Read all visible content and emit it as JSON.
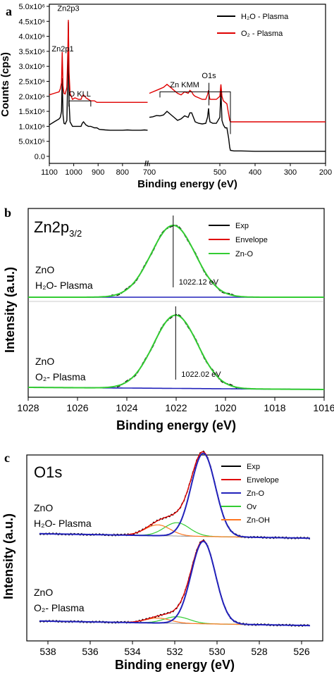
{
  "chart_data": [
    {
      "panel": "a",
      "type": "line",
      "xlabel": "Binding energy (eV)",
      "ylabel": "Counts (cps)",
      "x_ticks": [
        "1100",
        "1000",
        "900",
        "800",
        "700",
        "500",
        "400",
        "300",
        "200"
      ],
      "x_break_label": "//",
      "y_ticks": [
        "0.0",
        "5.0x10⁵",
        "1.0x10⁶",
        "1.5x10⁶",
        "2.0x10⁶",
        "2.5x10⁶",
        "3.0x10⁶",
        "3.5x10⁶",
        "4.0x10⁶",
        "4.5x10⁶",
        "5.0x10⁶"
      ],
      "ylim": [
        0,
        5000000
      ],
      "annotations": [
        {
          "text": "Zn2p3",
          "x": 1022,
          "y": 4850000
        },
        {
          "text": "Zn2p1",
          "x": 1045,
          "y": 3500000
        },
        {
          "text": "O KLL",
          "x": 975,
          "y": 2000000
        },
        {
          "text": "Zn KMM",
          "x": 600,
          "y": 2300000
        },
        {
          "text": "O1s",
          "x": 531,
          "y": 2600000
        }
      ],
      "legend": {
        "placement": "top-right",
        "entries": [
          "H₂O - Plasma",
          "O₂ - Plasma"
        ]
      },
      "series": [
        {
          "name": "H₂O - Plasma",
          "color": "#000000",
          "x": [
            1100,
            1080,
            1060,
            1055,
            1050,
            1047,
            1044,
            1040,
            1035,
            1028,
            1024,
            1022,
            1019,
            1015,
            1005,
            995,
            980,
            970,
            965,
            960,
            950,
            940,
            930,
            915,
            905,
            895,
            870,
            850,
            820,
            800,
            780,
            760,
            740,
            725,
            710,
            705,
            700,
            690,
            680,
            670,
            660,
            650,
            640,
            630,
            620,
            610,
            600,
            590,
            585,
            580,
            575,
            570,
            560,
            550,
            540,
            535,
            532,
            530,
            528,
            520,
            510,
            500,
            497,
            494,
            490,
            485,
            480,
            475,
            472,
            470,
            460,
            440,
            400,
            300,
            200
          ],
          "y": [
            1050000,
            1150000,
            1250000,
            1300000,
            1500000,
            2600000,
            1400000,
            1100000,
            1080000,
            1200000,
            2800000,
            4480000,
            1800000,
            1150000,
            1000000,
            1000000,
            1000000,
            1000000,
            1100000,
            1150000,
            1050000,
            1000000,
            1000000,
            950000,
            950000,
            900000,
            880000,
            870000,
            870000,
            870000,
            880000,
            870000,
            870000,
            870000,
            880000,
            870000,
            1300000,
            1320000,
            1360000,
            1350000,
            1380000,
            1500000,
            1400000,
            1300000,
            1200000,
            1250000,
            1350000,
            1300000,
            1450000,
            1450000,
            1300000,
            1150000,
            1100000,
            1080000,
            1100000,
            1300000,
            1600000,
            1300000,
            1150000,
            1100000,
            1100000,
            1300000,
            2200000,
            1200000,
            1050000,
            950000,
            950000,
            600000,
            300000,
            200000,
            180000,
            180000,
            170000,
            170000,
            170000
          ]
        },
        {
          "name": "O₂ - Plasma",
          "color": "#e00000",
          "x": [
            1100,
            1080,
            1060,
            1055,
            1050,
            1047,
            1044,
            1040,
            1035,
            1028,
            1024,
            1022,
            1019,
            1015,
            1005,
            995,
            980,
            970,
            965,
            960,
            950,
            940,
            930,
            915,
            905,
            895,
            870,
            850,
            820,
            800,
            780,
            760,
            740,
            725,
            710,
            705,
            700,
            690,
            680,
            670,
            660,
            650,
            640,
            630,
            620,
            610,
            600,
            590,
            585,
            580,
            575,
            570,
            560,
            550,
            540,
            535,
            532,
            530,
            528,
            520,
            510,
            500,
            497,
            494,
            490,
            485,
            480,
            475,
            472,
            470,
            460,
            440,
            400,
            300,
            200
          ],
          "y": [
            2050000,
            2100000,
            2150000,
            2250000,
            2450000,
            3480000,
            2350000,
            2100000,
            2080000,
            2300000,
            3500000,
            4550000,
            2800000,
            2100000,
            1900000,
            1950000,
            1900000,
            1900000,
            2000000,
            2050000,
            1950000,
            1900000,
            1850000,
            1850000,
            1800000,
            1800000,
            1800000,
            1800000,
            1800000,
            1800000,
            1800000,
            1800000,
            1800000,
            1800000,
            1800000,
            1800000,
            2100000,
            2150000,
            2200000,
            2250000,
            2300000,
            2400000,
            2300000,
            2200000,
            2100000,
            2050000,
            2150000,
            2100000,
            2200000,
            2150000,
            2050000,
            2000000,
            1950000,
            1900000,
            1900000,
            2050000,
            2200000,
            2000000,
            1900000,
            1900000,
            1900000,
            2000000,
            2400000,
            2000000,
            1850000,
            1800000,
            1750000,
            1400000,
            1200000,
            1150000,
            1150000,
            1150000,
            1150000,
            1150000,
            1150000
          ]
        }
      ]
    },
    {
      "panel": "b",
      "type": "line",
      "title": "Zn2p",
      "title_sub": "3/2",
      "xlabel": "Binding energy (eV)",
      "ylabel": "Intensity (a.u.)",
      "x_ticks": [
        "1028",
        "1026",
        "1024",
        "1022",
        "1020",
        "1018",
        "1016"
      ],
      "xlim": [
        1028,
        1016
      ],
      "legend": {
        "placement": "top-right",
        "entries": [
          "Exp",
          "Envelope",
          "Zn-O"
        ]
      },
      "legend_colors": [
        "#000000",
        "#e00000",
        "#33cc33"
      ],
      "samples": [
        {
          "label_line1": "ZnO",
          "label_line2": "H₂O- Plasma",
          "peak_label": "1022.12 eV",
          "center": 1022.12,
          "fwhm": 2.1,
          "height": 1.0
        },
        {
          "label_line1": "ZnO",
          "label_line2": "O₂- Plasma",
          "peak_label": "1022.02 eV",
          "center": 1022.02,
          "fwhm": 2.1,
          "height": 1.0
        }
      ]
    },
    {
      "panel": "c",
      "type": "line",
      "title": "O1s",
      "xlabel": "Binding energy (eV)",
      "ylabel": "Intensity (a.u.)",
      "x_ticks": [
        "538",
        "536",
        "534",
        "532",
        "530",
        "528",
        "526"
      ],
      "xlim": [
        539,
        525
      ],
      "legend": {
        "placement": "top-right",
        "entries": [
          "Exp",
          "Envelope",
          "Zn-O",
          "Ov",
          "Zn-OH"
        ]
      },
      "legend_colors": [
        "#000000",
        "#e00000",
        "#2222bb",
        "#33cc33",
        "#ff7722"
      ],
      "samples": [
        {
          "label_line1": "ZnO",
          "label_line2": "H₂O- Plasma",
          "components": [
            {
              "name": "Zn-O",
              "center": 530.65,
              "fwhm": 1.35,
              "height": 1.0
            },
            {
              "name": "Ov",
              "center": 531.9,
              "fwhm": 1.4,
              "height": 0.16
            },
            {
              "name": "Zn-OH",
              "center": 532.8,
              "fwhm": 1.4,
              "height": 0.13
            }
          ]
        },
        {
          "label_line1": "ZnO",
          "label_line2": "O₂- Plasma",
          "components": [
            {
              "name": "Zn-O",
              "center": 530.65,
              "fwhm": 1.35,
              "height": 1.0
            },
            {
              "name": "Ov",
              "center": 531.9,
              "fwhm": 1.4,
              "height": 0.08
            },
            {
              "name": "Zn-OH",
              "center": 532.8,
              "fwhm": 1.4,
              "height": 0.06
            }
          ]
        }
      ]
    }
  ],
  "panels": {
    "a": "a",
    "b": "b",
    "c": "c"
  }
}
